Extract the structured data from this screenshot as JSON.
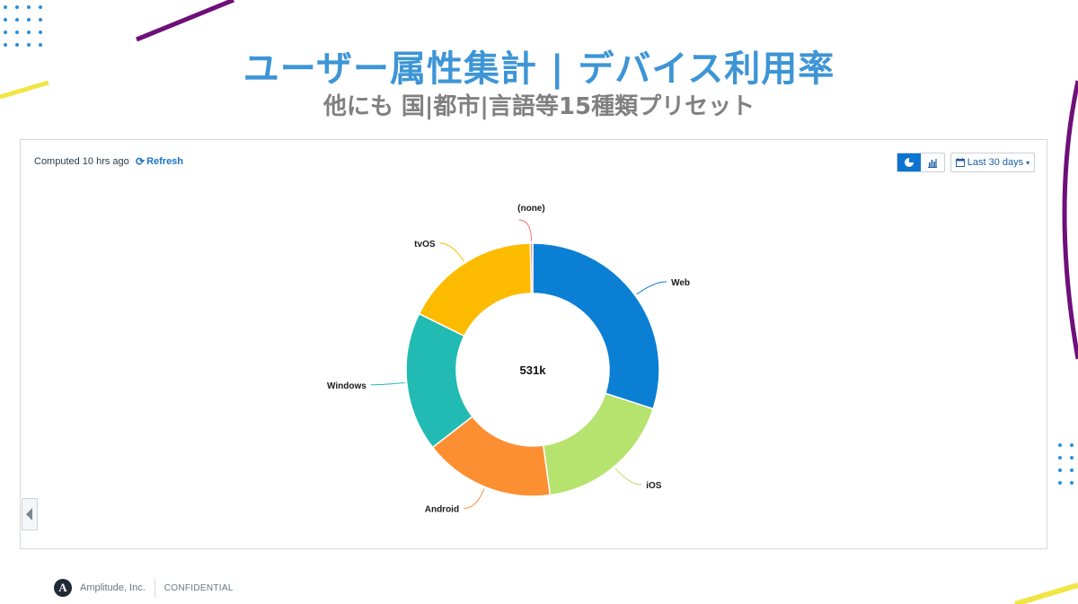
{
  "slide": {
    "title": "ユーザー属性集計 | デバイス利用率",
    "subtitle": "他にも 国|都市|言語等15種類プリセット"
  },
  "toolbar": {
    "computed_text": "Computed 10 hrs ago",
    "refresh_label": "Refresh",
    "refresh_icon": "refresh-icon",
    "view_pie_icon": "pie-chart-icon",
    "view_bar_icon": "bar-chart-icon",
    "active_view": "pie",
    "date_range_label": "Last 30 days",
    "date_icon": "calendar-icon"
  },
  "chart_data": {
    "type": "pie",
    "center_label": "531k",
    "slices": [
      {
        "label": "Web",
        "value": 30.0,
        "color": "#0a7fd4"
      },
      {
        "label": "iOS",
        "value": 17.8,
        "color": "#b6e26e"
      },
      {
        "label": "Android",
        "value": 16.7,
        "color": "#fd8f33"
      },
      {
        "label": "Windows",
        "value": 17.8,
        "color": "#22bbb3"
      },
      {
        "label": "tvOS",
        "value": 17.4,
        "color": "#fdbb00"
      },
      {
        "label": "(none)",
        "value": 0.3,
        "color": "#f4766e"
      }
    ]
  },
  "footer": {
    "logo_letter": "A",
    "company": "Amplitude, Inc.",
    "confidential": "CONFIDENTIAL"
  },
  "colors": {
    "title": "#3d95d5",
    "accent_blue": "#1a73c9",
    "deco_purple": "#6e0f7a",
    "deco_yellow": "#f1e545",
    "deco_dots": "#2a8fd9"
  }
}
